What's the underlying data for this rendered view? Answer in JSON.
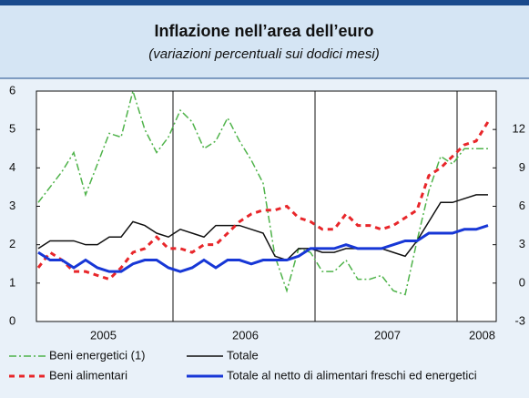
{
  "chart_data": {
    "type": "line",
    "title": "Inflazione nell’area dell’euro",
    "subtitle": "(variazioni percentuali sui dodici mesi)",
    "categories": [
      null,
      null,
      null,
      null,
      null,
      "2005",
      null,
      null,
      null,
      null,
      null,
      null,
      null,
      null,
      null,
      null,
      null,
      "2006",
      null,
      null,
      null,
      null,
      null,
      null,
      null,
      null,
      null,
      null,
      null,
      "2007",
      null,
      null,
      null,
      null,
      null,
      null,
      null,
      "2008",
      null
    ],
    "ylim": [
      0,
      6
    ],
    "yticks": [
      0,
      1,
      2,
      3,
      4,
      5,
      6
    ],
    "y2lim": [
      -3,
      15
    ],
    "y2ticks": [
      -3,
      0,
      3,
      6,
      9,
      12
    ],
    "series": [
      {
        "name": "Beni energetici (1)",
        "color": "#4fb34a",
        "axis": "y2",
        "dash": "8 3 2 3",
        "values": [
          6.3,
          7.5,
          8.7,
          10.2,
          6.9,
          9.3,
          11.7,
          11.4,
          15,
          12,
          10.2,
          11.4,
          13.5,
          12.6,
          10.5,
          11.1,
          12.9,
          11.1,
          9.6,
          7.8,
          2.1,
          -0.6,
          2.7,
          2.4,
          0.9,
          0.9,
          1.8,
          0.3,
          0.3,
          0.6,
          -0.6,
          -0.9,
          3.3,
          7.2,
          9.9,
          9.3,
          10.5,
          10.5,
          10.5
        ]
      },
      {
        "name": "Totale",
        "color": "#111111",
        "dash": "none",
        "values": [
          1.9,
          2.1,
          2.1,
          2.1,
          2.0,
          2.0,
          2.2,
          2.2,
          2.6,
          2.5,
          2.3,
          2.2,
          2.4,
          2.3,
          2.2,
          2.5,
          2.5,
          2.5,
          2.4,
          2.3,
          1.7,
          1.6,
          1.9,
          1.9,
          1.8,
          1.8,
          1.9,
          1.9,
          1.9,
          1.9,
          1.8,
          1.7,
          2.1,
          2.6,
          3.1,
          3.1,
          3.2,
          3.3,
          3.3
        ]
      },
      {
        "name": "Beni alimentari",
        "color": "#e8262a",
        "dash": "6 5",
        "values": [
          1.4,
          1.8,
          1.6,
          1.3,
          1.3,
          1.2,
          1.1,
          1.4,
          1.8,
          1.9,
          2.2,
          1.9,
          1.9,
          1.8,
          2.0,
          2.0,
          2.3,
          2.6,
          2.8,
          2.9,
          2.9,
          3.0,
          2.7,
          2.6,
          2.4,
          2.4,
          2.8,
          2.5,
          2.5,
          2.4,
          2.5,
          2.7,
          2.9,
          3.8,
          4.0,
          4.3,
          4.6,
          4.7,
          5.2
        ]
      },
      {
        "name": "Totale al netto di alimentari freschi ed energetici",
        "color": "#1737d6",
        "dash": "none",
        "values": [
          1.8,
          1.6,
          1.6,
          1.4,
          1.6,
          1.4,
          1.3,
          1.3,
          1.5,
          1.6,
          1.6,
          1.4,
          1.3,
          1.4,
          1.6,
          1.4,
          1.6,
          1.6,
          1.5,
          1.6,
          1.6,
          1.6,
          1.7,
          1.9,
          1.9,
          1.9,
          2.0,
          1.9,
          1.9,
          1.9,
          2.0,
          2.1,
          2.1,
          2.3,
          2.3,
          2.3,
          2.4,
          2.4,
          2.5
        ]
      }
    ]
  }
}
